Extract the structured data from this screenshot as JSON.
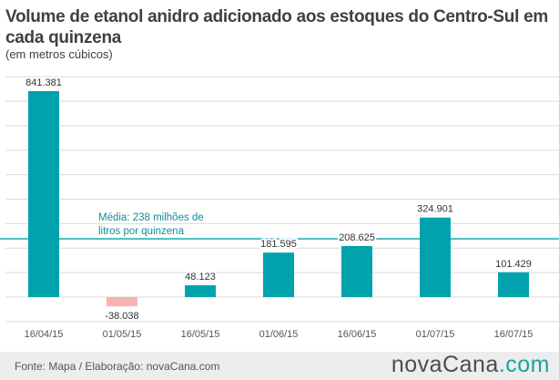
{
  "header": {
    "title": "Volume de etanol anidro adicionado aos estoques do Centro-Sul em cada quinzena",
    "subtitle": "(em metros cúbicos)"
  },
  "chart_data": {
    "type": "bar",
    "title": "Volume de etanol anidro adicionado aos estoques do Centro-Sul em cada quinzena",
    "subtitle": "(em metros cúbicos)",
    "categories": [
      "16/04/15",
      "01/05/15",
      "16/05/15",
      "01/06/15",
      "16/06/15",
      "01/07/15",
      "16/07/15"
    ],
    "values": [
      841381,
      -38038,
      48123,
      181595,
      208625,
      324901,
      101429
    ],
    "value_labels": [
      "841.381",
      "-38.038",
      "48.123",
      "181.595",
      "208.625",
      "324.901",
      "101.429"
    ],
    "ylim": [
      -100000,
      900000
    ],
    "grid": true,
    "reference_line": {
      "value": 238000,
      "label_line1": "Média: 238 milhões de",
      "label_line2": "litros por quinzena"
    },
    "colors": {
      "positive": "#00a3ad",
      "negative": "#f7b3b3",
      "reference": "#00a3ad",
      "grid": "#d9d9d9"
    }
  },
  "footer": {
    "source": "Fonte: Mapa / Elaboração: novaCana.com",
    "logo_main": "novaCana",
    "logo_tld": ".com"
  }
}
